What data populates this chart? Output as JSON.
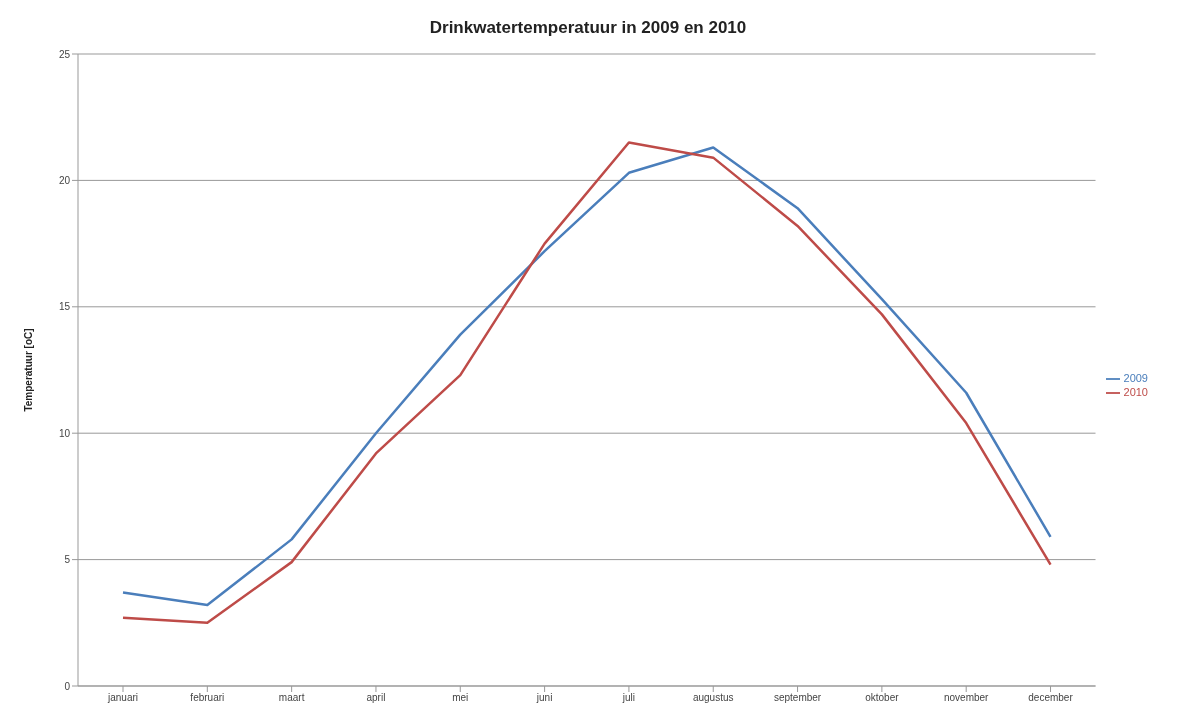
{
  "chart_data": {
    "type": "line",
    "title": "Drinkwatertemperatuur in 2009 en 2010",
    "ylabel": "Temperatuur [oC]",
    "categories": [
      "januari",
      "februari",
      "maart",
      "april",
      "mei",
      "juni",
      "juli",
      "augustus",
      "september",
      "oktober",
      "november",
      "december"
    ],
    "series": [
      {
        "name": "2009",
        "color": "#4a7ebb",
        "values": [
          3.7,
          3.2,
          5.8,
          10.0,
          13.9,
          17.2,
          20.3,
          21.3,
          18.9,
          15.3,
          11.6,
          5.9
        ]
      },
      {
        "name": "2010",
        "color": "#be4b48",
        "values": [
          2.7,
          2.5,
          4.9,
          9.2,
          12.3,
          17.5,
          21.5,
          20.9,
          18.2,
          14.7,
          10.4,
          4.8
        ]
      }
    ],
    "ylim": [
      0,
      25
    ],
    "yticks": [
      0,
      5,
      10,
      15,
      20,
      25
    ],
    "grid": "y",
    "legend": "right",
    "marker": "none"
  }
}
